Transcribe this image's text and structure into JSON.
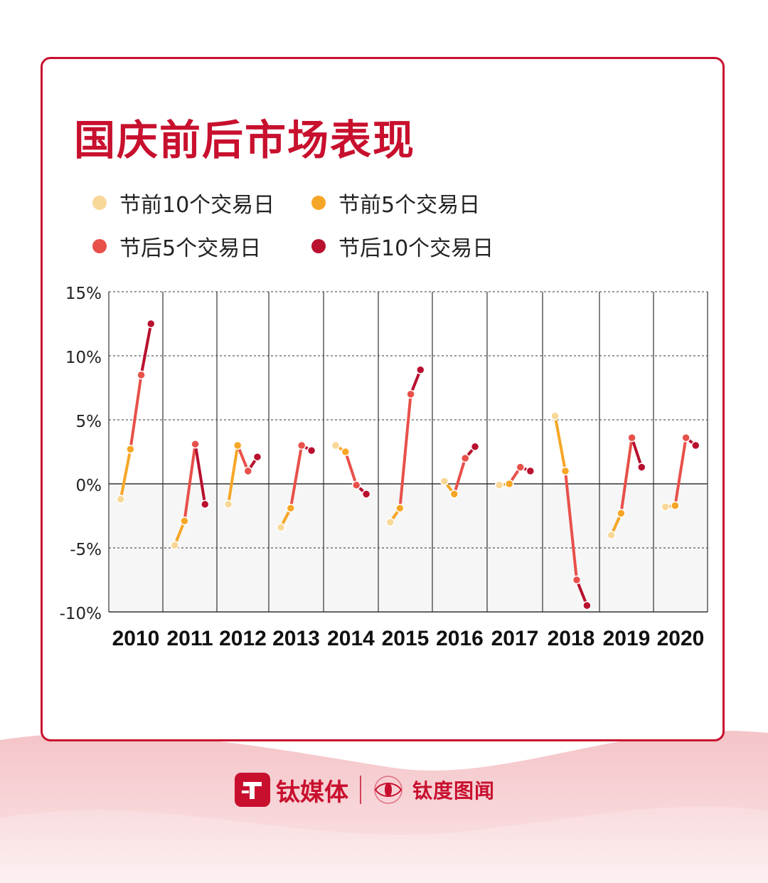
{
  "title": "国庆前后市场表现",
  "colors": {
    "brand": "#c8102e",
    "before10": "#f8d898",
    "before5": "#f6a626",
    "after5": "#e8504a",
    "after10": "#b8102e",
    "negative_fill": "#f6f6f6"
  },
  "legend": [
    {
      "label": "节前10个交易日",
      "color": "#f8d898"
    },
    {
      "label": "节前5个交易日",
      "color": "#f6a626"
    },
    {
      "label": "节后5个交易日",
      "color": "#e8504a"
    },
    {
      "label": "节后10个交易日",
      "color": "#b8102e"
    }
  ],
  "chart_data": {
    "type": "line",
    "title": "国庆前后市场表现",
    "ylim": [
      -10,
      15
    ],
    "yticks": [
      "15%",
      "10%",
      "5%",
      "0%",
      "-5%",
      "-10%"
    ],
    "ytick_values": [
      15,
      10,
      5,
      0,
      -5,
      -10
    ],
    "grid": "horizontal dashed",
    "categories": [
      "2010",
      "2011",
      "2012",
      "2013",
      "2014",
      "2015",
      "2016",
      "2017",
      "2018",
      "2019",
      "2020"
    ],
    "series": [
      {
        "name": "节前10个交易日",
        "values": [
          -1.2,
          -4.8,
          -1.6,
          -3.4,
          3.0,
          -3.0,
          0.2,
          -0.1,
          5.3,
          -4.0,
          -1.8
        ]
      },
      {
        "name": "节前5个交易日",
        "values": [
          2.7,
          -2.9,
          3.0,
          -1.9,
          2.5,
          -1.9,
          -0.8,
          0.0,
          1.0,
          -2.3,
          -1.7
        ]
      },
      {
        "name": "节后5个交易日",
        "values": [
          8.5,
          3.1,
          1.0,
          3.0,
          -0.1,
          7.0,
          2.0,
          1.3,
          -7.5,
          3.6,
          3.6
        ]
      },
      {
        "name": "节后10个交易日",
        "values": [
          12.5,
          -1.6,
          2.1,
          2.6,
          -0.8,
          8.9,
          2.9,
          1.0,
          -9.5,
          1.3,
          3.0
        ]
      }
    ]
  },
  "footer": {
    "brand": "钛媒体",
    "sub_brand": "钛度图闻"
  }
}
